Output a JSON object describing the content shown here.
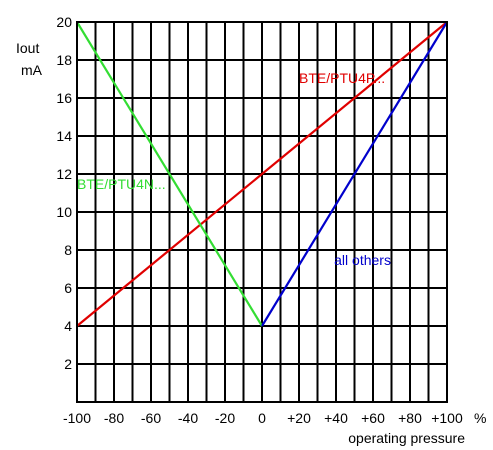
{
  "chart_data": {
    "type": "line",
    "xlabel": "operating pressure",
    "ylabel_line1": "Iout",
    "ylabel_line2": "mA",
    "x_unit": "%",
    "xlim": [
      -100,
      100
    ],
    "ylim": [
      0,
      20
    ],
    "x_grid_step": 10,
    "y_grid_step": 2,
    "grid": true,
    "x_ticks": [
      {
        "value": -100,
        "label": "-100"
      },
      {
        "value": -80,
        "label": "-80"
      },
      {
        "value": -60,
        "label": "-60"
      },
      {
        "value": -40,
        "label": "-40"
      },
      {
        "value": -20,
        "label": "-20"
      },
      {
        "value": 0,
        "label": "0"
      },
      {
        "value": 20,
        "label": "+20"
      },
      {
        "value": 40,
        "label": "+40"
      },
      {
        "value": 60,
        "label": "+60"
      },
      {
        "value": 80,
        "label": "+80"
      },
      {
        "value": 100,
        "label": "+100"
      }
    ],
    "y_ticks": [
      {
        "value": 2,
        "label": "2"
      },
      {
        "value": 4,
        "label": "4"
      },
      {
        "value": 6,
        "label": "6"
      },
      {
        "value": 8,
        "label": "8"
      },
      {
        "value": 10,
        "label": "10"
      },
      {
        "value": 12,
        "label": "12"
      },
      {
        "value": 14,
        "label": "14"
      },
      {
        "value": 16,
        "label": "16"
      },
      {
        "value": 18,
        "label": "18"
      },
      {
        "value": 20,
        "label": "20"
      }
    ],
    "series": [
      {
        "name": "BTE/PTU4P...",
        "color": "#e00000",
        "x": [
          -100,
          100
        ],
        "y": [
          4,
          20
        ],
        "label_at": [
          20,
          16.8
        ]
      },
      {
        "name": "BTE/PTU4N...",
        "color": "#33dd33",
        "x": [
          -100,
          0
        ],
        "y": [
          20,
          4
        ],
        "label_at": [
          -100,
          11.2
        ]
      },
      {
        "name": "all others",
        "color": "#0000cc",
        "x": [
          0,
          100
        ],
        "y": [
          4,
          20
        ],
        "label_at": [
          39,
          7.2
        ]
      }
    ]
  }
}
